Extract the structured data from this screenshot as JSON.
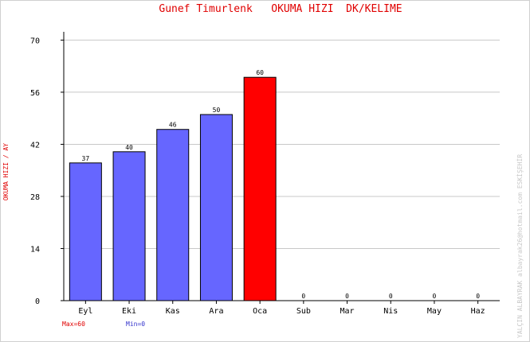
{
  "chart_data": {
    "type": "bar",
    "title": "Gunef Timurlenk   OKUMA HIZI  DK/KELIME",
    "ylabel": "OKUMA HIZI / AY",
    "xlabel": "",
    "categories": [
      "Eyl",
      "Eki",
      "Kas",
      "Ara",
      "Oca",
      "Sub",
      "Mar",
      "Nis",
      "May",
      "Haz"
    ],
    "values": [
      37,
      40,
      46,
      50,
      60,
      0,
      0,
      0,
      0,
      0
    ],
    "data_labels": [
      "37",
      "40",
      "46",
      "50",
      "60",
      "0",
      "0",
      "0",
      "0",
      "0"
    ],
    "yticks": [
      "0",
      "14",
      "28",
      "42",
      "56",
      "70"
    ],
    "ylim": [
      0,
      75
    ],
    "grid": true,
    "legend": [
      "Max=60",
      "Min=0"
    ],
    "credit": "YALÇIN ALBAYRAK  albayrak26@hotmail.com   ESKİŞEHİR",
    "colors": {
      "bar": "#6666ff",
      "max_bar": "#ff0000",
      "title": "#e00000",
      "min_text": "#3333cc"
    }
  }
}
